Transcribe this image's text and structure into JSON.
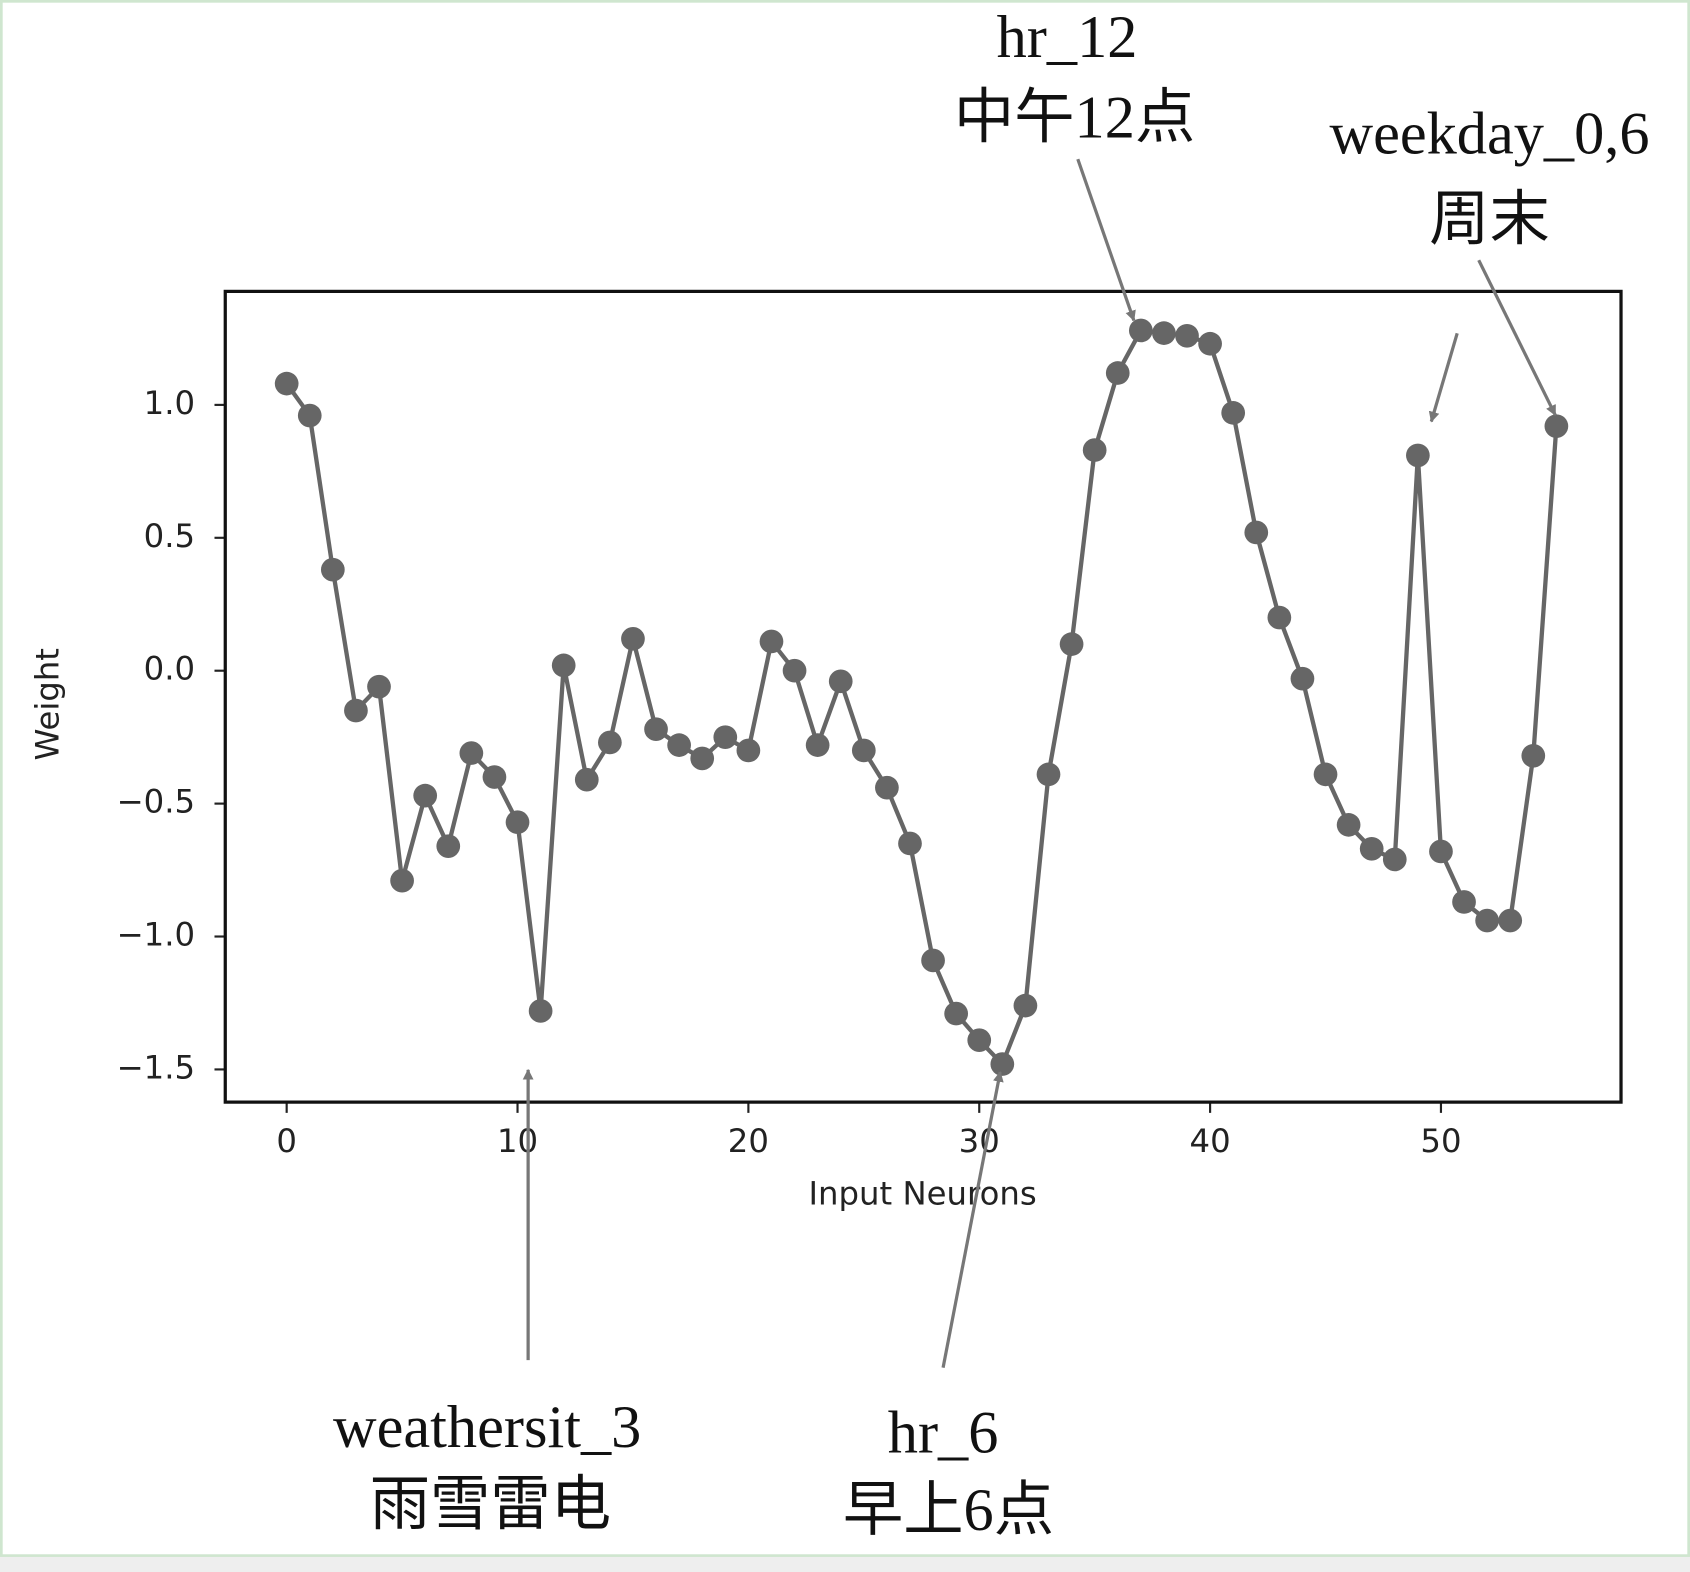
{
  "chart_data": {
    "type": "line",
    "x": [
      0,
      1,
      2,
      3,
      4,
      5,
      6,
      7,
      8,
      9,
      10,
      11,
      12,
      13,
      14,
      15,
      16,
      17,
      18,
      19,
      20,
      21,
      22,
      23,
      24,
      25,
      26,
      27,
      28,
      29,
      30,
      31,
      32,
      33,
      34,
      35,
      36,
      37,
      38,
      39,
      40,
      41,
      42,
      43,
      44,
      45,
      46,
      47,
      48,
      49,
      50,
      51,
      52,
      53,
      54,
      55
    ],
    "series": [
      {
        "color": "#666666",
        "values": [
          1.08,
          0.96,
          0.38,
          -0.15,
          -0.06,
          -0.79,
          -0.47,
          -0.66,
          -0.31,
          -0.4,
          -0.57,
          -1.28,
          0.02,
          -0.41,
          -0.27,
          0.12,
          -0.22,
          -0.28,
          -0.33,
          -0.25,
          -0.3,
          0.11,
          0.0,
          -0.28,
          -0.04,
          -0.3,
          -0.44,
          -0.65,
          -1.09,
          -1.29,
          -1.39,
          -1.48,
          -1.26,
          -0.39,
          0.1,
          0.83,
          1.12,
          1.28,
          1.27,
          1.26,
          1.23,
          0.97,
          0.52,
          0.2,
          -0.03,
          -0.39,
          -0.58,
          -0.67,
          -0.71,
          0.81,
          -0.68,
          -0.87,
          -0.94,
          -0.94,
          -0.32,
          0.92
        ]
      }
    ],
    "xlabel": "Input Neurons",
    "ylabel": "Weight",
    "xlim": [
      -2.66,
      57.8
    ],
    "ylim": [
      -1.623,
      1.427
    ],
    "xticks": [
      0,
      10,
      20,
      30,
      40,
      50
    ],
    "yticks": [
      {
        "value": -1.5,
        "label": "−1.5"
      },
      {
        "value": -1.0,
        "label": "−1.0"
      },
      {
        "value": -0.5,
        "label": "−0.5"
      },
      {
        "value": 0,
        "label": "0.0"
      },
      0.5,
      {
        "value": 1.0,
        "label": "1.0"
      }
    ],
    "grid": false,
    "annotations": [
      [
        "hr_12",
        "中午12点"
      ],
      [
        "weekday_0,6",
        "周末"
      ],
      [
        "weathersit_3",
        "雨雪雷电"
      ],
      [
        "hr_6",
        "早上6点"
      ]
    ]
  }
}
